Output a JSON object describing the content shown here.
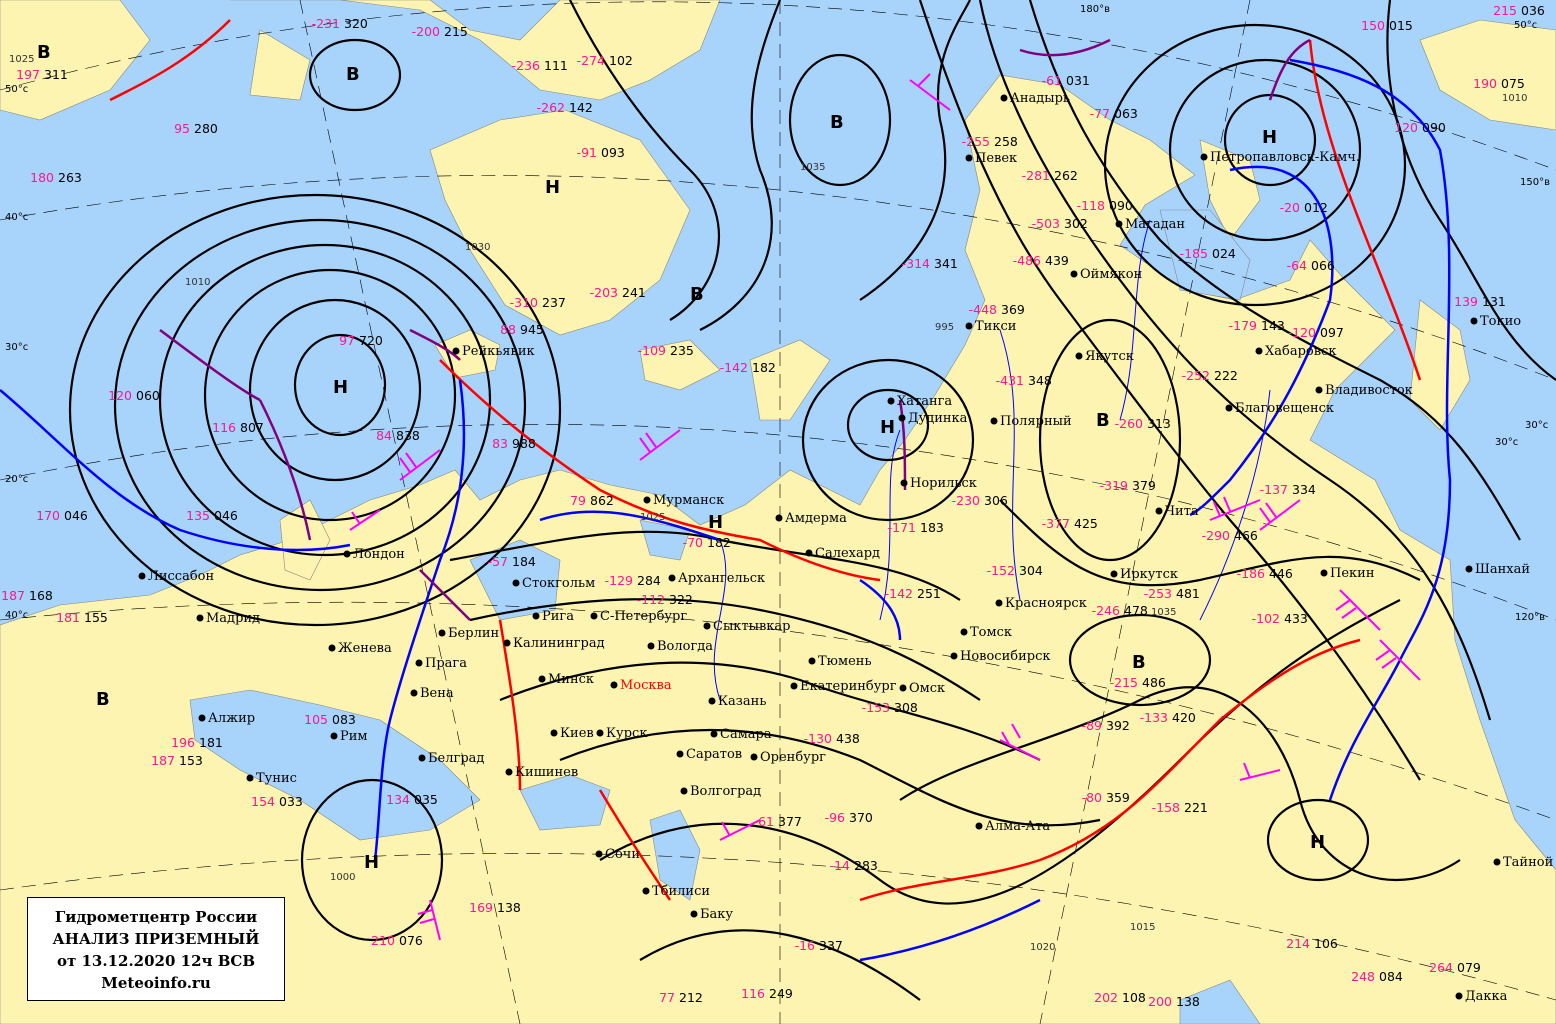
{
  "legend": {
    "line1": "Гидрометцентр России",
    "line2": "АНАЛИЗ ПРИЗЕМНЫЙ",
    "line3": "от 13.12.2020 12ч ВСВ",
    "line4": "Meteoinfo.ru"
  },
  "colors": {
    "ocean": "#a8d4fc",
    "land": "#fcf4b0",
    "isobar": "#000000",
    "warm_front": "#ff0000",
    "cold_front": "#0000ff",
    "occluded_front": "#800080",
    "temperature": "#ff1493",
    "wind_barb_strong": "#ff00ff",
    "rivers": "#0000ff"
  },
  "pressure_centers": [
    {
      "symbol": "Н",
      "type": "low"
    },
    {
      "symbol": "Н",
      "type": "low"
    },
    {
      "symbol": "Н",
      "type": "low"
    },
    {
      "symbol": "Н",
      "type": "low"
    },
    {
      "symbol": "Н",
      "type": "low"
    },
    {
      "symbol": "Н",
      "type": "low"
    },
    {
      "symbol": "Н",
      "type": "low"
    },
    {
      "symbol": "В",
      "type": "high"
    },
    {
      "symbol": "В",
      "type": "high"
    },
    {
      "symbol": "В",
      "type": "high"
    },
    {
      "symbol": "В",
      "type": "high"
    },
    {
      "symbol": "В",
      "type": "high"
    },
    {
      "symbol": "В",
      "type": "high"
    },
    {
      "symbol": "В",
      "type": "high"
    }
  ],
  "isobar_labels": [
    "1025",
    "1010",
    "1035",
    "1030",
    "995",
    "1025",
    "1035",
    "1010",
    "1000",
    "1015",
    "1020"
  ],
  "latitude_labels": [
    "50°с",
    "40°с",
    "30°с",
    "20°с",
    "40°с",
    "30°с",
    "50°с",
    "180°в",
    "150°в",
    "120°в",
    "30°с"
  ],
  "cities": [
    "Рейкьявик",
    "Лондон",
    "Лиссабон",
    "Мадрид",
    "Алжир",
    "Тунис",
    "Рим",
    "Женева",
    "Вена",
    "Прага",
    "Берлин",
    "Стокгольм",
    "Рига",
    "Калининград",
    "Минск",
    "Киев",
    "Кишинев",
    "Белград",
    "Мурманск",
    "Амдерма",
    "Салехард",
    "Архангельск",
    "С-Петербург",
    "Сыктывкар",
    "Вологда",
    "Москва",
    "Курск",
    "Казань",
    "Самара",
    "Саратов",
    "Волгоград",
    "Оренбург",
    "Екатеринбург",
    "Тюмень",
    "Омск",
    "Томск",
    "Новосибирск",
    "Красноярск",
    "Норильск",
    "Дудинка",
    "Хатанга",
    "Полярный",
    "Тикси",
    "Якутск",
    "Оймякон",
    "Магадан",
    "Певек",
    "Анадырь",
    "Петропавловск-Камч.",
    "Хабаровск",
    "Благовещенск",
    "Владивосток",
    "Чита",
    "Иркутск",
    "Пекин",
    "Шанхай",
    "Алма-Ата",
    "Тбилиси",
    "Баку",
    "Сочи",
    "Токио",
    "Тайной",
    "Дакка"
  ],
  "observations": [
    {
      "t": "97",
      "p": "720"
    },
    {
      "t": "84",
      "p": "838"
    },
    {
      "t": "83",
      "p": "988"
    },
    {
      "t": "79",
      "p": "862"
    },
    {
      "t": "116",
      "p": "807"
    },
    {
      "t": "88",
      "p": "945"
    },
    {
      "t": "-231",
      "p": "320"
    },
    {
      "t": "-200",
      "p": "215"
    },
    {
      "t": "-236",
      "p": "111"
    },
    {
      "t": "-274",
      "p": "102"
    },
    {
      "t": "-262",
      "p": "142"
    },
    {
      "t": "-91",
      "p": "093"
    },
    {
      "t": "-310",
      "p": "237"
    },
    {
      "t": "-203",
      "p": "241"
    },
    {
      "t": "-109",
      "p": "235"
    },
    {
      "t": "-142",
      "p": "182"
    },
    {
      "t": "-70",
      "p": "182"
    },
    {
      "t": "-57",
      "p": "184"
    },
    {
      "t": "-112",
      "p": "322"
    },
    {
      "t": "-129",
      "p": "284"
    },
    {
      "t": "-314",
      "p": "341"
    },
    {
      "t": "-486",
      "p": "439"
    },
    {
      "t": "-503",
      "p": "302"
    },
    {
      "t": "-448",
      "p": "369"
    },
    {
      "t": "-431",
      "p": "348"
    },
    {
      "t": "-255",
      "p": "258"
    },
    {
      "t": "-281",
      "p": "262"
    },
    {
      "t": "-118",
      "p": "090"
    },
    {
      "t": "-61",
      "p": "031"
    },
    {
      "t": "-77",
      "p": "063"
    },
    {
      "t": "-185",
      "p": "024"
    },
    {
      "t": "-20",
      "p": "012"
    },
    {
      "t": "-64",
      "p": "066"
    },
    {
      "t": "-179",
      "p": "143"
    },
    {
      "t": "-120",
      "p": "097"
    },
    {
      "t": "-252",
      "p": "222"
    },
    {
      "t": "-260",
      "p": "313"
    },
    {
      "t": "-319",
      "p": "379"
    },
    {
      "t": "-290",
      "p": "466"
    },
    {
      "t": "-186",
      "p": "446"
    },
    {
      "t": "-253",
      "p": "481"
    },
    {
      "t": "-246",
      "p": "478"
    },
    {
      "t": "-215",
      "p": "486"
    },
    {
      "t": "-102",
      "p": "433"
    },
    {
      "t": "-137",
      "p": "334"
    },
    {
      "t": "-89",
      "p": "392"
    },
    {
      "t": "-133",
      "p": "420"
    },
    {
      "t": "-80",
      "p": "359"
    },
    {
      "t": "-158",
      "p": "221"
    },
    {
      "t": "-152",
      "p": "304"
    },
    {
      "t": "-230",
      "p": "306"
    },
    {
      "t": "-377",
      "p": "425"
    },
    {
      "t": "-171",
      "p": "183"
    },
    {
      "t": "-142",
      "p": "251"
    },
    {
      "t": "-153",
      "p": "308"
    },
    {
      "t": "-130",
      "p": "438"
    },
    {
      "t": "-61",
      "p": "377"
    },
    {
      "t": "-96",
      "p": "370"
    },
    {
      "t": "-14",
      "p": "283"
    },
    {
      "t": "-16",
      "p": "337"
    },
    {
      "t": "116",
      "p": "249"
    },
    {
      "t": "77",
      "p": "212"
    },
    {
      "t": "169",
      "p": "138"
    },
    {
      "t": "210",
      "p": "076"
    },
    {
      "t": "134",
      "p": "035"
    },
    {
      "t": "154",
      "p": "033"
    },
    {
      "t": "187",
      "p": "153"
    },
    {
      "t": "196",
      "p": "181"
    },
    {
      "t": "105",
      "p": "083"
    },
    {
      "t": "181",
      "p": "155"
    },
    {
      "t": "187",
      "p": "168"
    },
    {
      "t": "170",
      "p": "046"
    },
    {
      "t": "135",
      "p": "046"
    },
    {
      "t": "120",
      "p": "060"
    },
    {
      "t": "180",
      "p": "263"
    },
    {
      "t": "95",
      "p": "280"
    },
    {
      "t": "197",
      "p": "311"
    },
    {
      "t": "150",
      "p": "015"
    },
    {
      "t": "120",
      "p": "090"
    },
    {
      "t": "139",
      "p": "131"
    },
    {
      "t": "190",
      "p": "075"
    },
    {
      "t": "215",
      "p": "036"
    },
    {
      "t": "214",
      "p": "106"
    },
    {
      "t": "248",
      "p": "084"
    },
    {
      "t": "264",
      "p": "079"
    },
    {
      "t": "202",
      "p": "108"
    },
    {
      "t": "200",
      "p": "138"
    }
  ]
}
